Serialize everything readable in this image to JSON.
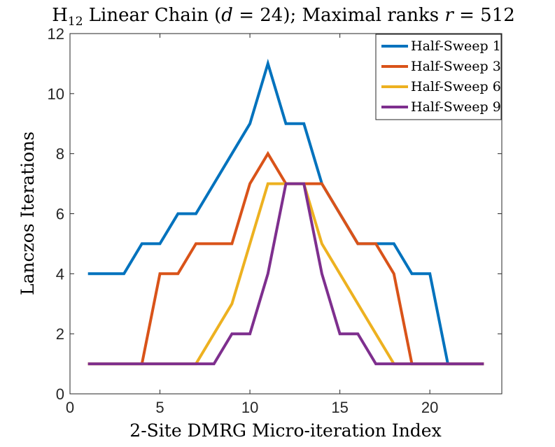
{
  "chart_data": {
    "type": "line",
    "title": {
      "prefix": "H",
      "subscript": "12",
      "middle": " Linear Chain (",
      "var_d": "d",
      "d_value": " = 24); Maximal ranks ",
      "var_r": "r",
      "r_value": " = 512"
    },
    "xlabel": "2-Site DMRG Micro-iteration Index",
    "ylabel": "Lanczos Iterations",
    "xlim": [
      0,
      24
    ],
    "ylim": [
      0,
      12
    ],
    "xticks": [
      0,
      5,
      10,
      15,
      20
    ],
    "yticks": [
      0,
      2,
      4,
      6,
      8,
      10,
      12
    ],
    "grid": false,
    "legend_position": "top-right",
    "series": [
      {
        "name": "Half-Sweep 1",
        "color": "#0072BD",
        "x": [
          1,
          2,
          3,
          4,
          5,
          6,
          7,
          8,
          9,
          10,
          11,
          12,
          13,
          14,
          15,
          16,
          17,
          18,
          19,
          20,
          21,
          22,
          23
        ],
        "y": [
          4,
          4,
          4,
          5,
          5,
          6,
          6,
          7,
          8,
          9,
          11,
          9,
          9,
          7,
          6,
          5,
          5,
          5,
          4,
          4,
          1,
          1,
          1
        ]
      },
      {
        "name": "Half-Sweep 3",
        "color": "#D95319",
        "x": [
          1,
          2,
          3,
          4,
          5,
          6,
          7,
          8,
          9,
          10,
          11,
          12,
          13,
          14,
          15,
          16,
          17,
          18,
          19,
          20,
          21,
          22,
          23
        ],
        "y": [
          1,
          1,
          1,
          1,
          4,
          4,
          5,
          5,
          5,
          7,
          8,
          7,
          7,
          7,
          6,
          5,
          5,
          4,
          1,
          1,
          1,
          1,
          1
        ]
      },
      {
        "name": "Half-Sweep 6",
        "color": "#EDB120",
        "x": [
          1,
          2,
          3,
          4,
          5,
          6,
          7,
          8,
          9,
          10,
          11,
          12,
          13,
          14,
          15,
          16,
          17,
          18,
          19,
          20,
          21,
          22,
          23
        ],
        "y": [
          1,
          1,
          1,
          1,
          1,
          1,
          1,
          2,
          3,
          5,
          7,
          7,
          7,
          5,
          4,
          3,
          2,
          1,
          1,
          1,
          1,
          1,
          1
        ]
      },
      {
        "name": "Half-Sweep 9",
        "color": "#7E2F8E",
        "x": [
          1,
          2,
          3,
          4,
          5,
          6,
          7,
          8,
          9,
          10,
          11,
          12,
          13,
          14,
          15,
          16,
          17,
          18,
          19,
          20,
          21,
          22,
          23
        ],
        "y": [
          1,
          1,
          1,
          1,
          1,
          1,
          1,
          1,
          2,
          2,
          4,
          7,
          7,
          4,
          2,
          2,
          1,
          1,
          1,
          1,
          1,
          1,
          1
        ]
      }
    ]
  }
}
